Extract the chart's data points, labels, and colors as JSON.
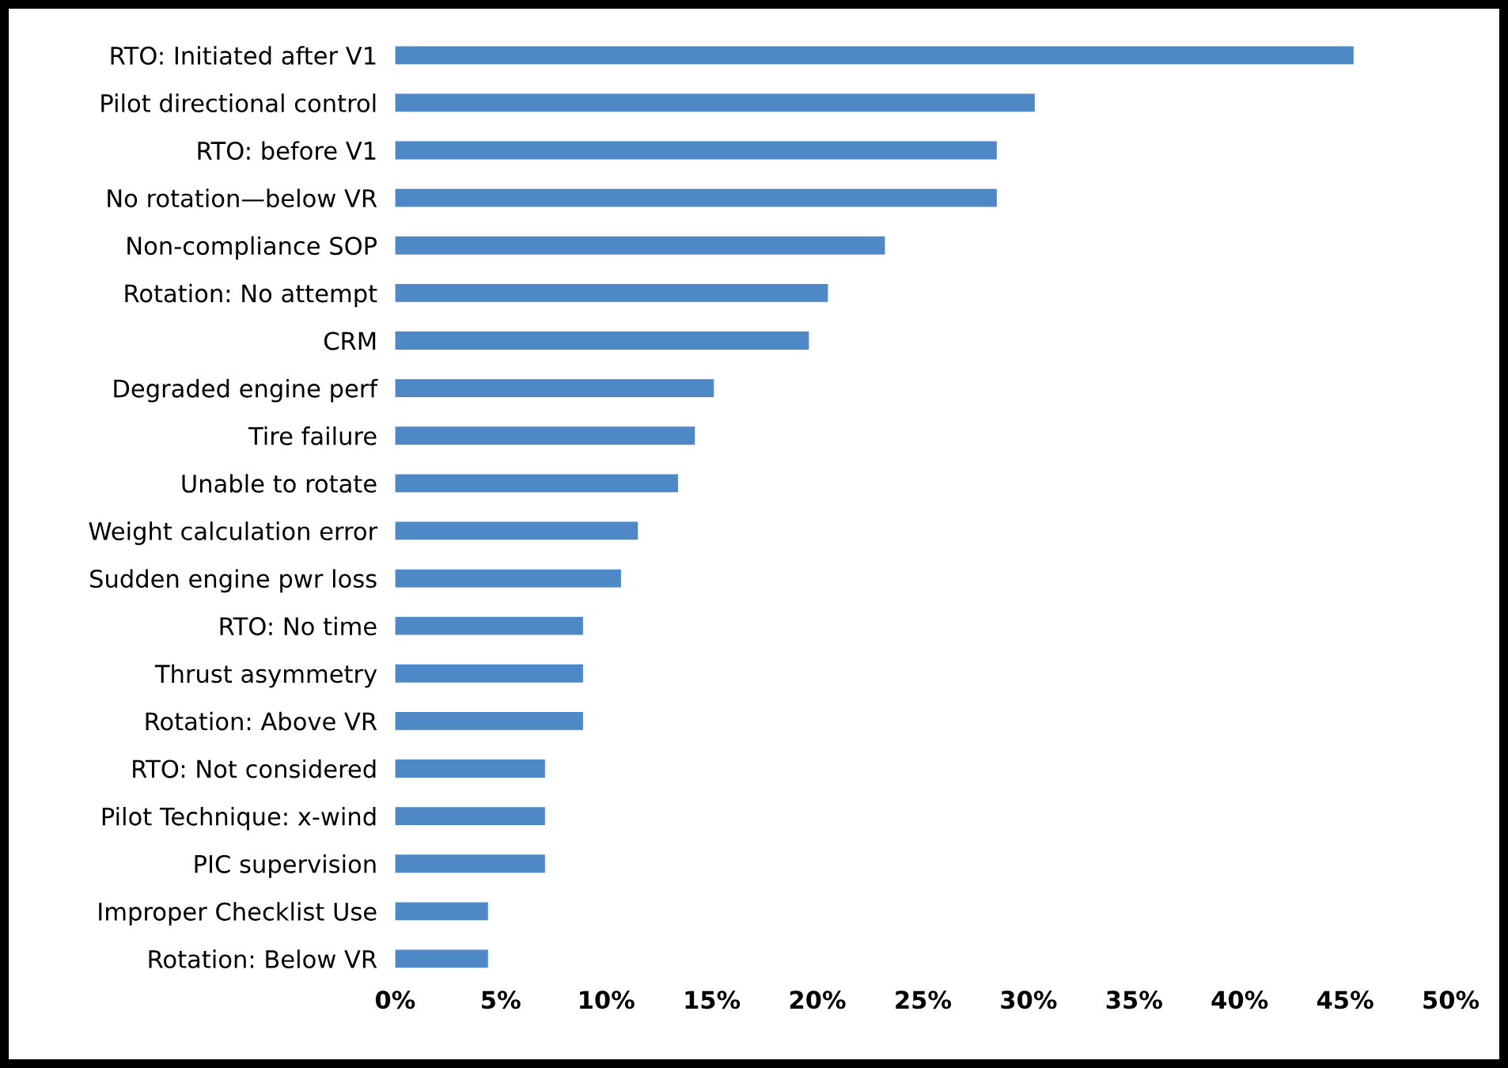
{
  "chart_data": {
    "type": "bar",
    "orientation": "horizontal",
    "categories": [
      "RTO: Initiated after V1",
      "Pilot directional control",
      "RTO: before V1",
      "No rotation—below VR",
      "Non-compliance SOP",
      "Rotation: No attempt",
      "CRM",
      "Degraded engine perf",
      "Tire failure",
      "Unable to rotate",
      "Weight calculation error",
      "Sudden engine pwr loss",
      "RTO: No time",
      "Thrust asymmetry",
      "Rotation: Above VR",
      "RTO: Not considered",
      "Pilot Technique: x-wind",
      "PIC supervision",
      "Improper Checklist Use",
      "Rotation: Below VR"
    ],
    "values": [
      45.4,
      30.3,
      28.5,
      28.5,
      23.2,
      20.5,
      19.6,
      15.1,
      14.2,
      13.4,
      11.5,
      10.7,
      8.9,
      8.9,
      8.9,
      7.1,
      7.1,
      7.1,
      4.4,
      4.4
    ],
    "color": "#4f88c6",
    "xlim": [
      0,
      50
    ],
    "xticks": [
      {
        "value": 0,
        "label": "0%"
      },
      {
        "value": 5,
        "label": "5%"
      },
      {
        "value": 10,
        "label": "10%"
      },
      {
        "value": 15,
        "label": "15%"
      },
      {
        "value": 20,
        "label": "20%"
      },
      {
        "value": 25,
        "label": "25%"
      },
      {
        "value": 30,
        "label": "30%"
      },
      {
        "value": 35,
        "label": "35%"
      },
      {
        "value": 40,
        "label": "40%"
      },
      {
        "value": 45,
        "label": "45%"
      },
      {
        "value": 50,
        "label": "50%"
      }
    ],
    "grid": false
  }
}
